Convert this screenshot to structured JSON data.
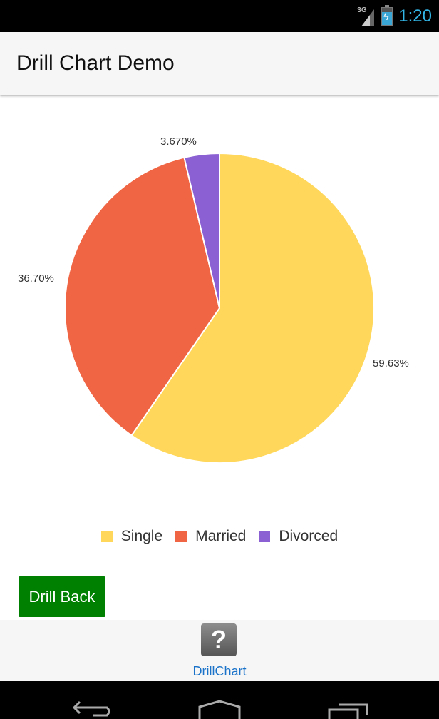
{
  "status_bar": {
    "network": "3G",
    "time": "1:20",
    "time_color": "#33b5e5"
  },
  "app_bar": {
    "title": "Drill Chart Demo"
  },
  "chart_data": {
    "type": "pie",
    "title": "",
    "categories": [
      "Single",
      "Married",
      "Divorced"
    ],
    "values": [
      59.63,
      36.7,
      3.67
    ],
    "labels": [
      "59.63%",
      "36.70%",
      "3.670%"
    ],
    "colors": [
      "#ffd75a",
      "#f06543",
      "#8a60d2"
    ],
    "start_angle": "top, clockwise",
    "legend_position": "bottom"
  },
  "legend": [
    {
      "label": "Single",
      "color": "#ffd75a"
    },
    {
      "label": "Married",
      "color": "#f06543"
    },
    {
      "label": "Divorced",
      "color": "#8a60d2"
    }
  ],
  "drill_back_button": {
    "label": "Drill Back",
    "color": "#008000"
  },
  "bottom_tab": {
    "label": "DrillChart",
    "icon": "help-icon"
  },
  "nav_bar": {
    "back": "back-icon",
    "home": "home-icon",
    "recents": "recents-icon"
  }
}
